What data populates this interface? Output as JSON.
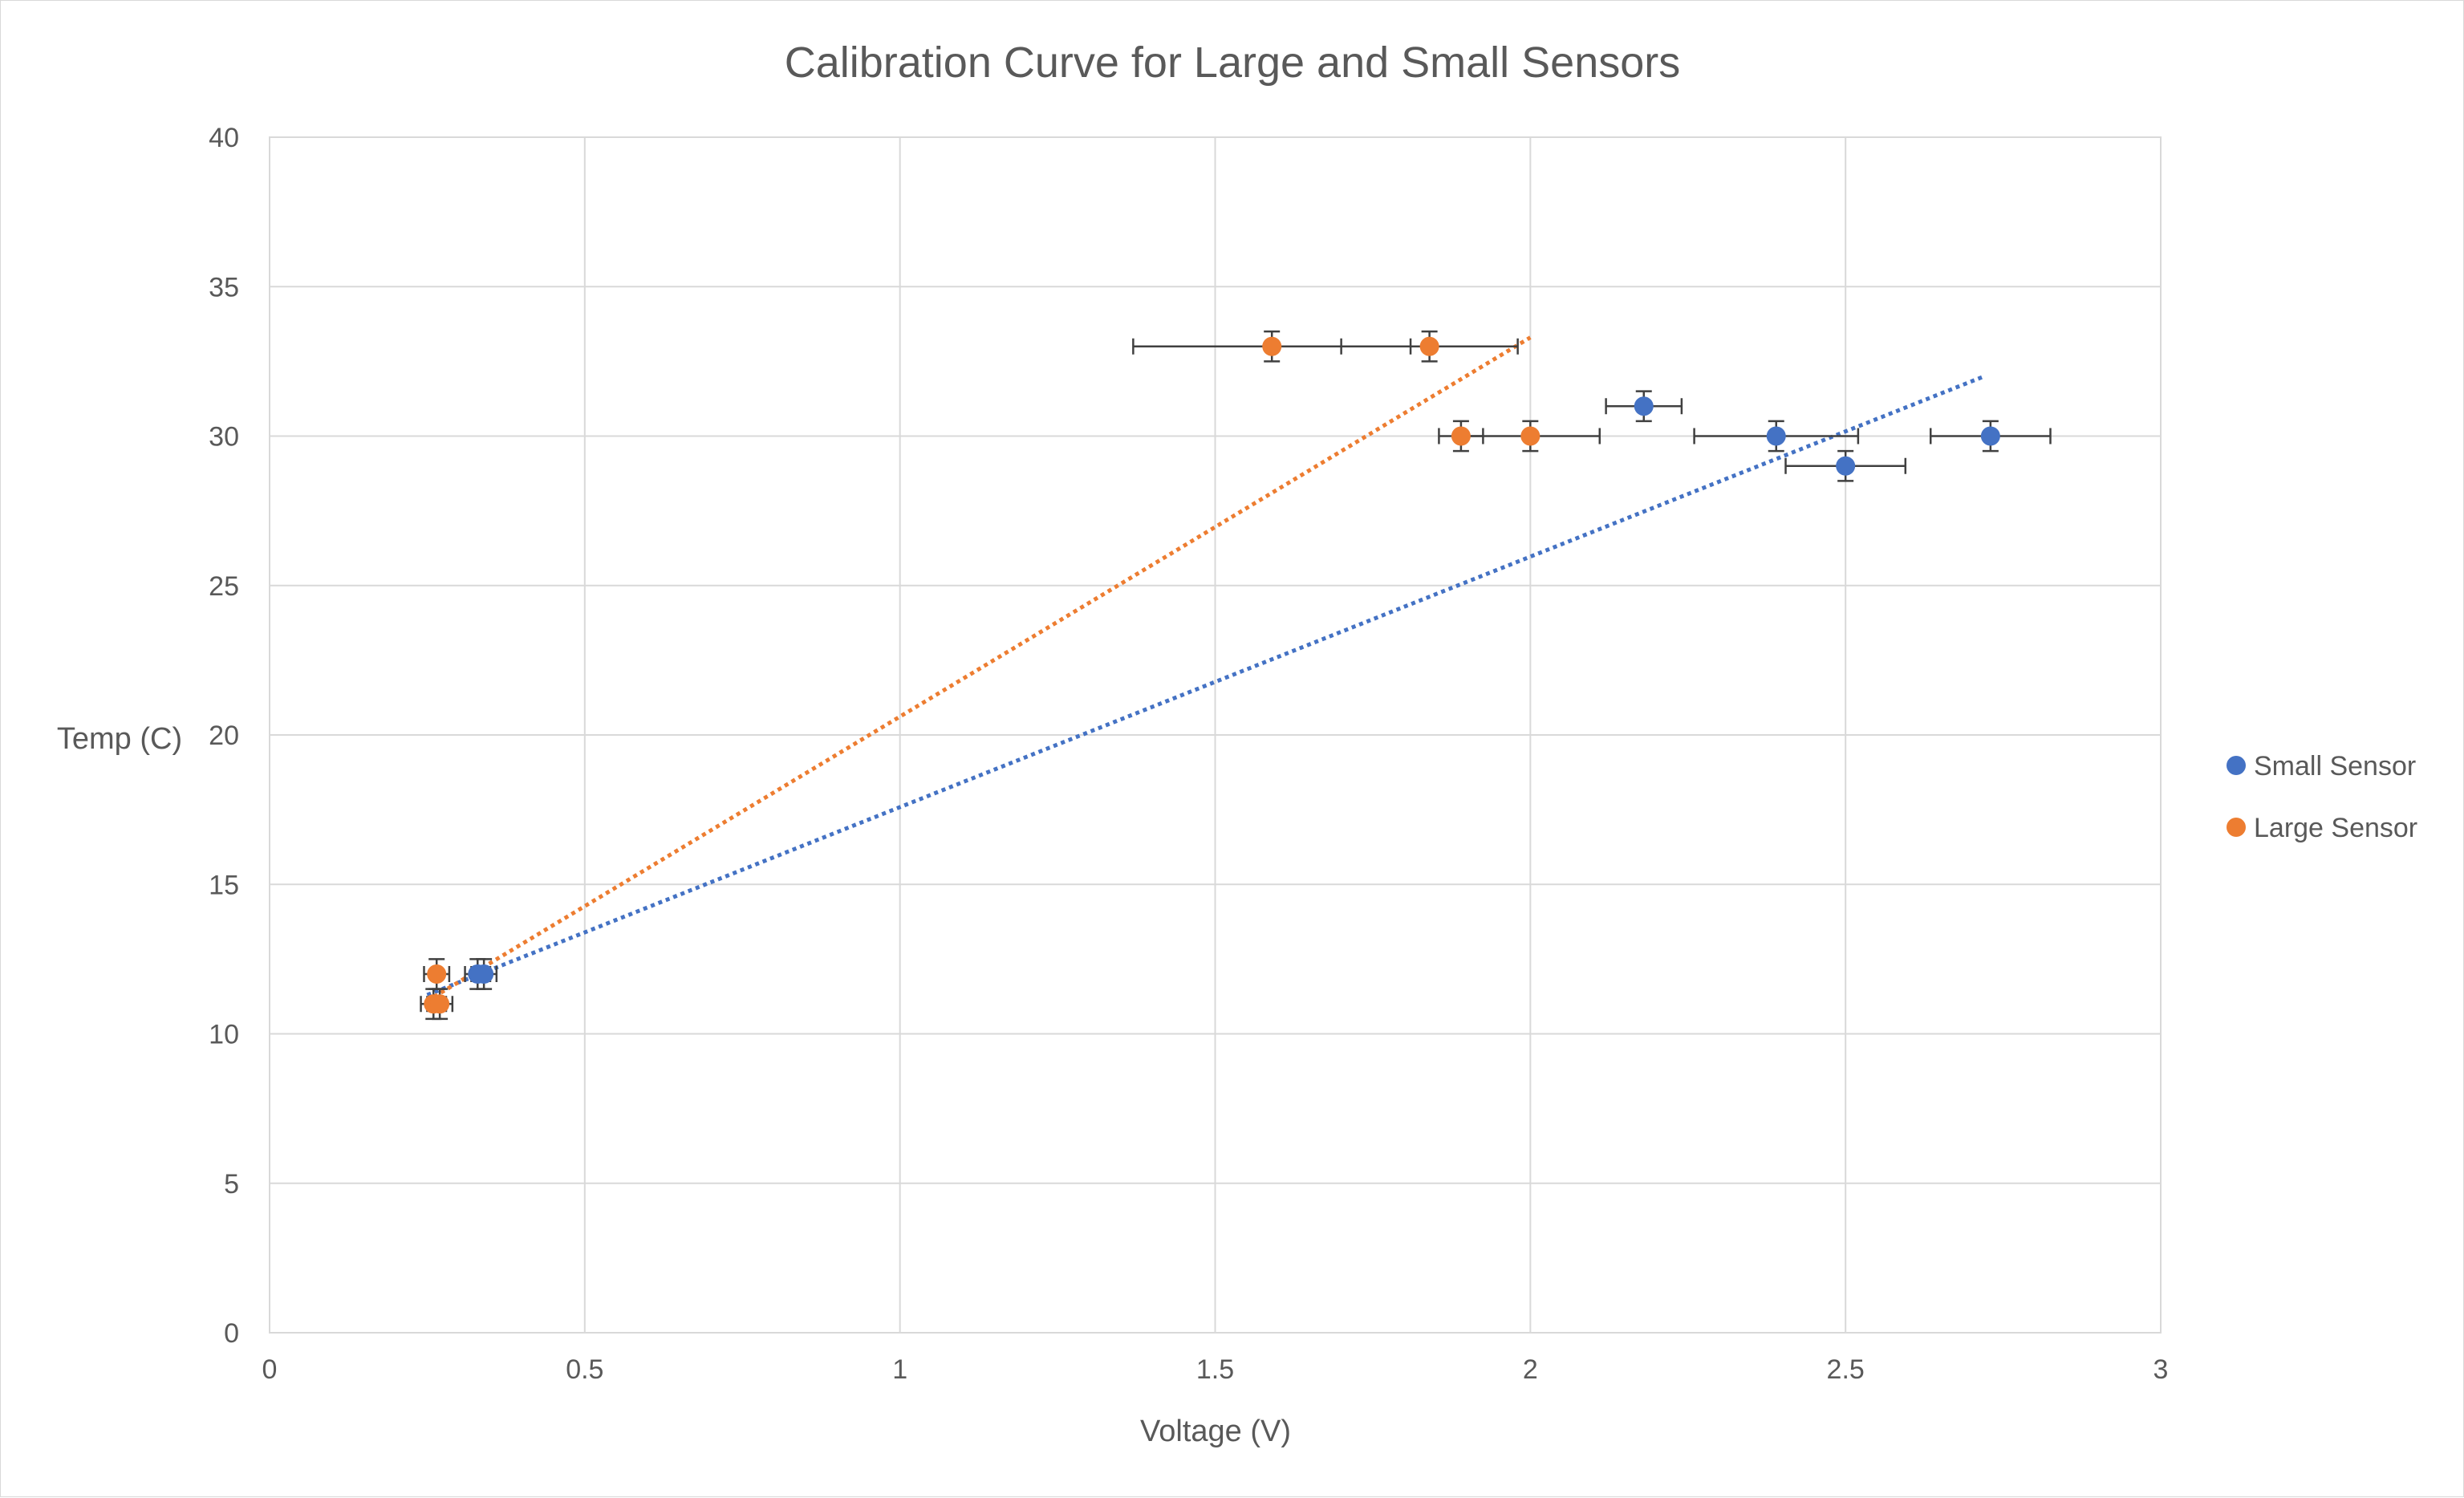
{
  "chart_data": {
    "type": "scatter",
    "title": "Calibration Curve for Large and Small Sensors",
    "xlabel": "Voltage (V)",
    "ylabel": "Temp (C)",
    "xlim": [
      0,
      3
    ],
    "ylim": [
      0,
      40
    ],
    "x_ticks": [
      "0",
      "0.5",
      "1",
      "1.5",
      "2",
      "2.5",
      "3"
    ],
    "x_tick_values": [
      0,
      0.5,
      1,
      1.5,
      2,
      2.5,
      3
    ],
    "y_ticks": [
      "0",
      "5",
      "10",
      "15",
      "20",
      "25",
      "30",
      "35",
      "40"
    ],
    "y_tick_values": [
      0,
      5,
      10,
      15,
      20,
      25,
      30,
      35,
      40
    ],
    "grid": true,
    "legend_position": "right",
    "y_error": 0.5,
    "series": [
      {
        "name": "Small Sensor",
        "color": "#4472c4",
        "points": [
          {
            "x": 0.33,
            "y": 12,
            "xerr": 0.02
          },
          {
            "x": 0.34,
            "y": 12,
            "xerr": 0.02
          },
          {
            "x": 2.18,
            "y": 31,
            "xerr": 0.06
          },
          {
            "x": 2.39,
            "y": 30,
            "xerr": 0.13
          },
          {
            "x": 2.5,
            "y": 29,
            "xerr": 0.095
          },
          {
            "x": 2.73,
            "y": 30,
            "xerr": 0.095
          }
        ],
        "trendline": {
          "style": "dotted",
          "x": [
            0.25,
            2.72
          ],
          "y": [
            11.3,
            32.0
          ]
        }
      },
      {
        "name": "Large Sensor",
        "color": "#ed7d31",
        "points": [
          {
            "x": 0.26,
            "y": 11,
            "xerr": 0.02
          },
          {
            "x": 0.27,
            "y": 11,
            "xerr": 0.02
          },
          {
            "x": 0.265,
            "y": 12,
            "xerr": 0.02
          },
          {
            "x": 1.59,
            "y": 33,
            "xerr": 0.22
          },
          {
            "x": 1.84,
            "y": 33,
            "xerr": 0.14
          },
          {
            "x": 1.89,
            "y": 30,
            "xerr": 0.035
          },
          {
            "x": 2.0,
            "y": 30,
            "xerr": 0.11
          }
        ],
        "trendline": {
          "style": "dotted",
          "x": [
            0.25,
            2.0
          ],
          "y": [
            11.1,
            33.3
          ]
        }
      }
    ]
  }
}
